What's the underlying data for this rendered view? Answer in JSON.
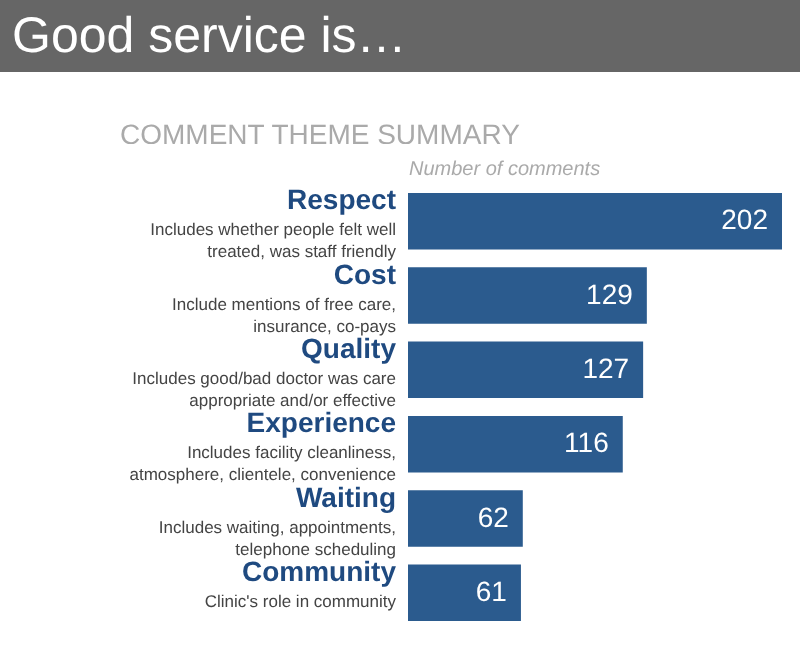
{
  "chart_data": {
    "type": "bar",
    "orientation": "horizontal",
    "title": "Good service is…",
    "subtitle": "COMMENT THEME SUMMARY",
    "xlabel": "Number of comments",
    "categories": [
      "Respect",
      "Cost",
      "Quality",
      "Experience",
      "Waiting",
      "Community"
    ],
    "values": [
      202,
      129,
      127,
      116,
      62,
      61
    ],
    "color": "#2b5b8e",
    "data_labels": true,
    "annotations": [
      "Includes whether people felt well treated, was staff friendly",
      "Include mentions of free care, insurance, co-pays",
      "Includes good/bad doctor was care appropriate and/or effective",
      "Includes facility cleanliness, atmosphere, clientele, convenience",
      "Includes waiting, appointments, telephone scheduling",
      "Clinic's role in community"
    ]
  }
}
